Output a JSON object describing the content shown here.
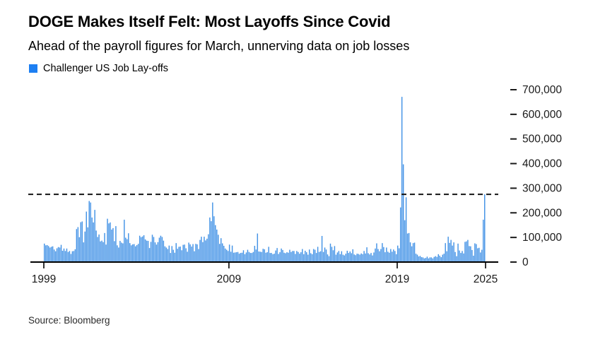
{
  "header": {
    "title": "DOGE Makes Itself Felt: Most Layoffs Since Covid",
    "subtitle": "Ahead of the payroll figures for March, unnerving data on job losses"
  },
  "legend": {
    "label": "Challenger US Job Lay-offs",
    "swatch_color": "#1d7ff2"
  },
  "source": "Source: Bloomberg",
  "colors": {
    "bar": "#4493e6",
    "axis": "#000000",
    "dashed_line": "#141414",
    "tick_text": "#1a1a1a"
  },
  "chart_data": {
    "type": "bar",
    "series_name": "Challenger US Job Lay-offs",
    "unit": "announced US job cuts per month",
    "x_start_month": "1999-01",
    "x_end_month": "2025-03",
    "ylim": [
      0,
      700000
    ],
    "y_ticks": [
      0,
      100000,
      200000,
      300000,
      400000,
      500000,
      600000,
      700000
    ],
    "x_tick_labels": [
      "1999",
      "2009",
      "2019",
      "2025"
    ],
    "x_tick_month_index": [
      0,
      132,
      252,
      315
    ],
    "grid": "off",
    "legend_position": "top-left",
    "reference_line": {
      "value": 275000,
      "style": "dashed"
    },
    "values_monthly": [
      75000,
      68000,
      69000,
      65000,
      59000,
      62000,
      64000,
      51000,
      44000,
      56000,
      61000,
      59000,
      70000,
      46000,
      55000,
      45000,
      55000,
      41000,
      45000,
      33000,
      44000,
      45000,
      52000,
      134000,
      142000,
      101000,
      162000,
      165000,
      80000,
      124000,
      205000,
      141000,
      248000,
      242000,
      181000,
      161000,
      212000,
      128000,
      102000,
      112000,
      84000,
      87000,
      81000,
      118000,
      71000,
      176000,
      157000,
      161000,
      132000,
      138000,
      85000,
      146000,
      68000,
      59000,
      86000,
      79000,
      76000,
      172000,
      99000,
      93000,
      117000,
      77000,
      68000,
      72000,
      73000,
      64000,
      69000,
      74000,
      107000,
      101000,
      104000,
      109000,
      92000,
      87000,
      86000,
      57000,
      82000,
      111000,
      102000,
      80000,
      71000,
      81000,
      99000,
      107000,
      102000,
      87000,
      64000,
      59000,
      53000,
      67000,
      37000,
      65000,
      50000,
      38000,
      77000,
      54000,
      62000,
      63000,
      48000,
      70000,
      71000,
      56000,
      42000,
      79000,
      72000,
      63000,
      73000,
      44000,
      74000,
      72000,
      53000,
      90000,
      103000,
      81000,
      103000,
      88000,
      95000,
      113000,
      181000,
      166000,
      242000,
      186000,
      150000,
      132000,
      111000,
      74000,
      97000,
      76000,
      66000,
      55000,
      50000,
      45000,
      71000,
      42000,
      67000,
      38000,
      39000,
      40000,
      41000,
      34000,
      37000,
      38000,
      48000,
      32000,
      39000,
      50000,
      41000,
      37000,
      37000,
      41000,
      66000,
      51000,
      116000,
      43000,
      42000,
      41000,
      54000,
      52000,
      38000,
      40000,
      62000,
      37000,
      37000,
      32000,
      34000,
      47000,
      57000,
      33000,
      40000,
      55000,
      49000,
      38000,
      36000,
      40000,
      38000,
      50000,
      41000,
      45000,
      45000,
      33000,
      45000,
      41000,
      34000,
      40000,
      53000,
      32000,
      46000,
      40000,
      30000,
      51000,
      36000,
      32000,
      53000,
      50000,
      37000,
      62000,
      41000,
      44000,
      106000,
      41000,
      59000,
      51000,
      31000,
      24000,
      75000,
      62000,
      48000,
      65000,
      30000,
      39000,
      45000,
      32000,
      44000,
      30000,
      27000,
      34000,
      46000,
      37000,
      43000,
      36000,
      52000,
      31000,
      28000,
      34000,
      33000,
      30000,
      35000,
      32000,
      45000,
      35000,
      60000,
      36000,
      31000,
      37000,
      27000,
      39000,
      55000,
      76000,
      53000,
      44000,
      53000,
      77000,
      61000,
      40000,
      59000,
      42000,
      38000,
      53000,
      42000,
      51000,
      45000,
      32000,
      67000,
      56000,
      222000,
      671000,
      397000,
      170000,
      263000,
      116000,
      118000,
      80000,
      64000,
      77000,
      79000,
      34000,
      30000,
      23000,
      25000,
      20000,
      19000,
      15000,
      17000,
      22000,
      15000,
      19000,
      19000,
      15000,
      21000,
      24000,
      21000,
      32000,
      26000,
      20000,
      30000,
      34000,
      77000,
      44000,
      103000,
      78000,
      90000,
      67000,
      80000,
      41000,
      24000,
      75000,
      47000,
      37000,
      45000,
      35000,
      82000,
      84000,
      90000,
      65000,
      64000,
      49000,
      26000,
      76000,
      73000,
      56000,
      58000,
      39000,
      50000,
      172000,
      275000
    ]
  }
}
